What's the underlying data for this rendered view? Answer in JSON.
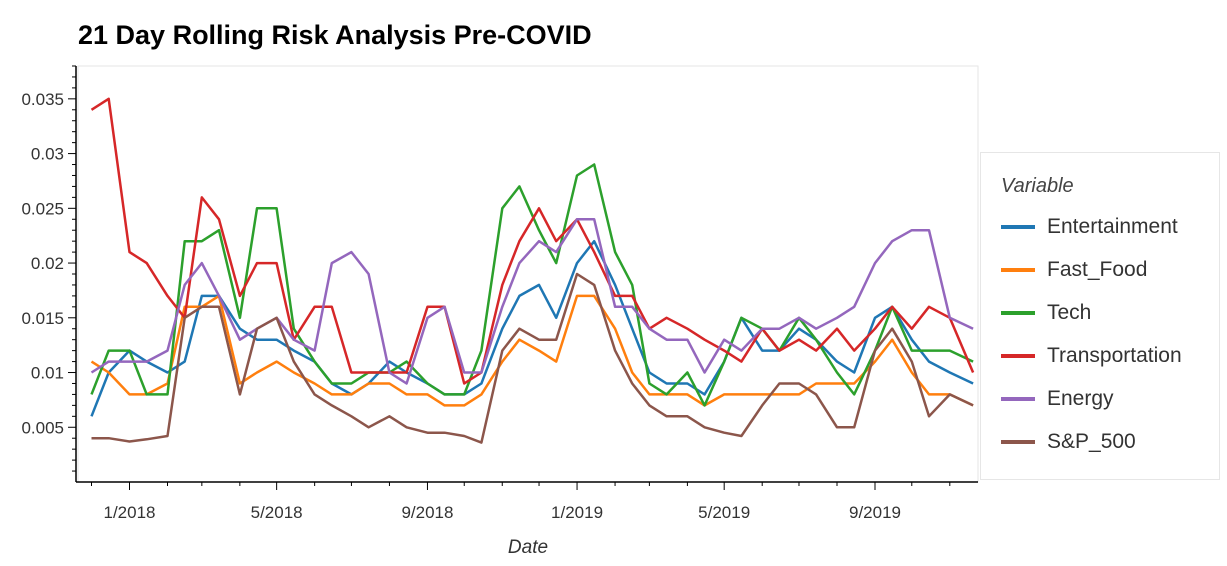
{
  "chart_data": {
    "type": "line",
    "title": "21 Day Rolling Risk Analysis Pre-COVID",
    "xlabel": "Date",
    "ylabel": "",
    "ylim": [
      0.0,
      0.038
    ],
    "y_ticks": [
      "0.005",
      "0.01",
      "0.015",
      "0.02",
      "0.025",
      "0.03",
      "0.035"
    ],
    "y_tick_values": [
      0.005,
      0.01,
      0.015,
      0.02,
      0.025,
      0.03,
      0.035
    ],
    "xlim": [
      "2017-11-20",
      "2019-11-24"
    ],
    "x_ticks": [
      "1/2018",
      "5/2018",
      "9/2018",
      "1/2019",
      "5/2019",
      "9/2019"
    ],
    "x_tick_values": [
      "2018-01-01",
      "2018-05-01",
      "2018-09-01",
      "2019-01-01",
      "2019-05-01",
      "2019-09-01"
    ],
    "grid": false,
    "legend_title": "Variable",
    "legend_position": "right",
    "x": [
      "2017-12-01",
      "2017-12-15",
      "2018-01-01",
      "2018-01-15",
      "2018-02-01",
      "2018-02-15",
      "2018-03-01",
      "2018-03-15",
      "2018-04-01",
      "2018-04-15",
      "2018-05-01",
      "2018-05-15",
      "2018-06-01",
      "2018-06-15",
      "2018-07-01",
      "2018-07-15",
      "2018-08-01",
      "2018-08-15",
      "2018-09-01",
      "2018-09-15",
      "2018-10-01",
      "2018-10-15",
      "2018-11-01",
      "2018-11-15",
      "2018-12-01",
      "2018-12-15",
      "2019-01-01",
      "2019-01-15",
      "2019-02-01",
      "2019-02-15",
      "2019-03-01",
      "2019-03-15",
      "2019-04-01",
      "2019-04-15",
      "2019-05-01",
      "2019-05-15",
      "2019-06-01",
      "2019-06-15",
      "2019-07-01",
      "2019-07-15",
      "2019-08-01",
      "2019-08-15",
      "2019-09-01",
      "2019-09-15",
      "2019-10-01",
      "2019-10-15",
      "2019-11-01",
      "2019-11-20"
    ],
    "series": [
      {
        "name": "Entertainment",
        "color": "#1f77b4",
        "values": [
          0.006,
          0.01,
          0.012,
          0.011,
          0.01,
          0.011,
          0.017,
          0.017,
          0.014,
          0.013,
          0.013,
          0.012,
          0.011,
          0.009,
          0.008,
          0.009,
          0.011,
          0.01,
          0.009,
          0.008,
          0.008,
          0.009,
          0.014,
          0.017,
          0.018,
          0.015,
          0.02,
          0.022,
          0.018,
          0.014,
          0.01,
          0.009,
          0.009,
          0.008,
          0.011,
          0.015,
          0.012,
          0.012,
          0.014,
          0.013,
          0.011,
          0.01,
          0.015,
          0.016,
          0.013,
          0.011,
          0.01,
          0.009
        ]
      },
      {
        "name": "Fast_Food",
        "color": "#ff7f0e",
        "values": [
          0.011,
          0.01,
          0.008,
          0.008,
          0.009,
          0.016,
          0.016,
          0.017,
          0.009,
          0.01,
          0.011,
          0.01,
          0.009,
          0.008,
          0.008,
          0.009,
          0.009,
          0.008,
          0.008,
          0.007,
          0.007,
          0.008,
          0.011,
          0.013,
          0.012,
          0.011,
          0.017,
          0.017,
          0.014,
          0.01,
          0.008,
          0.008,
          0.008,
          0.007,
          0.008,
          0.008,
          0.008,
          0.008,
          0.008,
          0.009,
          0.009,
          0.009,
          0.011,
          0.013,
          0.01,
          0.008,
          0.008,
          0.007
        ]
      },
      {
        "name": "Tech",
        "color": "#2ca02c",
        "values": [
          0.008,
          0.012,
          0.012,
          0.008,
          0.008,
          0.022,
          0.022,
          0.023,
          0.015,
          0.025,
          0.025,
          0.014,
          0.011,
          0.009,
          0.009,
          0.01,
          0.01,
          0.011,
          0.009,
          0.008,
          0.008,
          0.012,
          0.025,
          0.027,
          0.023,
          0.02,
          0.028,
          0.029,
          0.021,
          0.018,
          0.009,
          0.008,
          0.01,
          0.007,
          0.011,
          0.015,
          0.014,
          0.012,
          0.015,
          0.013,
          0.01,
          0.008,
          0.012,
          0.016,
          0.012,
          0.012,
          0.012,
          0.011
        ]
      },
      {
        "name": "Transportation",
        "color": "#d62728",
        "values": [
          0.034,
          0.035,
          0.021,
          0.02,
          0.017,
          0.015,
          0.026,
          0.024,
          0.017,
          0.02,
          0.02,
          0.013,
          0.016,
          0.016,
          0.01,
          0.01,
          0.01,
          0.01,
          0.016,
          0.016,
          0.009,
          0.01,
          0.018,
          0.022,
          0.025,
          0.022,
          0.024,
          0.021,
          0.017,
          0.017,
          0.014,
          0.015,
          0.014,
          0.013,
          0.012,
          0.011,
          0.014,
          0.012,
          0.013,
          0.012,
          0.014,
          0.012,
          0.014,
          0.016,
          0.014,
          0.016,
          0.015,
          0.01
        ]
      },
      {
        "name": "Energy",
        "color": "#9467bd",
        "values": [
          0.01,
          0.011,
          0.011,
          0.011,
          0.012,
          0.018,
          0.02,
          0.017,
          0.013,
          0.014,
          0.015,
          0.013,
          0.012,
          0.02,
          0.021,
          0.019,
          0.01,
          0.009,
          0.015,
          0.016,
          0.01,
          0.01,
          0.016,
          0.02,
          0.022,
          0.021,
          0.024,
          0.024,
          0.016,
          0.016,
          0.014,
          0.013,
          0.013,
          0.01,
          0.013,
          0.012,
          0.014,
          0.014,
          0.015,
          0.014,
          0.015,
          0.016,
          0.02,
          0.022,
          0.023,
          0.023,
          0.015,
          0.014
        ]
      },
      {
        "name": "S&P_500",
        "color": "#8c564b",
        "values": [
          0.004,
          0.004,
          0.0037,
          0.0039,
          0.0042,
          0.015,
          0.016,
          0.016,
          0.008,
          0.014,
          0.015,
          0.011,
          0.008,
          0.007,
          0.006,
          0.005,
          0.006,
          0.005,
          0.0045,
          0.0045,
          0.0042,
          0.0036,
          0.012,
          0.014,
          0.013,
          0.013,
          0.019,
          0.018,
          0.012,
          0.009,
          0.007,
          0.006,
          0.006,
          0.005,
          0.0045,
          0.0042,
          0.007,
          0.009,
          0.009,
          0.008,
          0.005,
          0.005,
          0.012,
          0.014,
          0.011,
          0.006,
          0.008,
          0.007
        ]
      }
    ]
  }
}
